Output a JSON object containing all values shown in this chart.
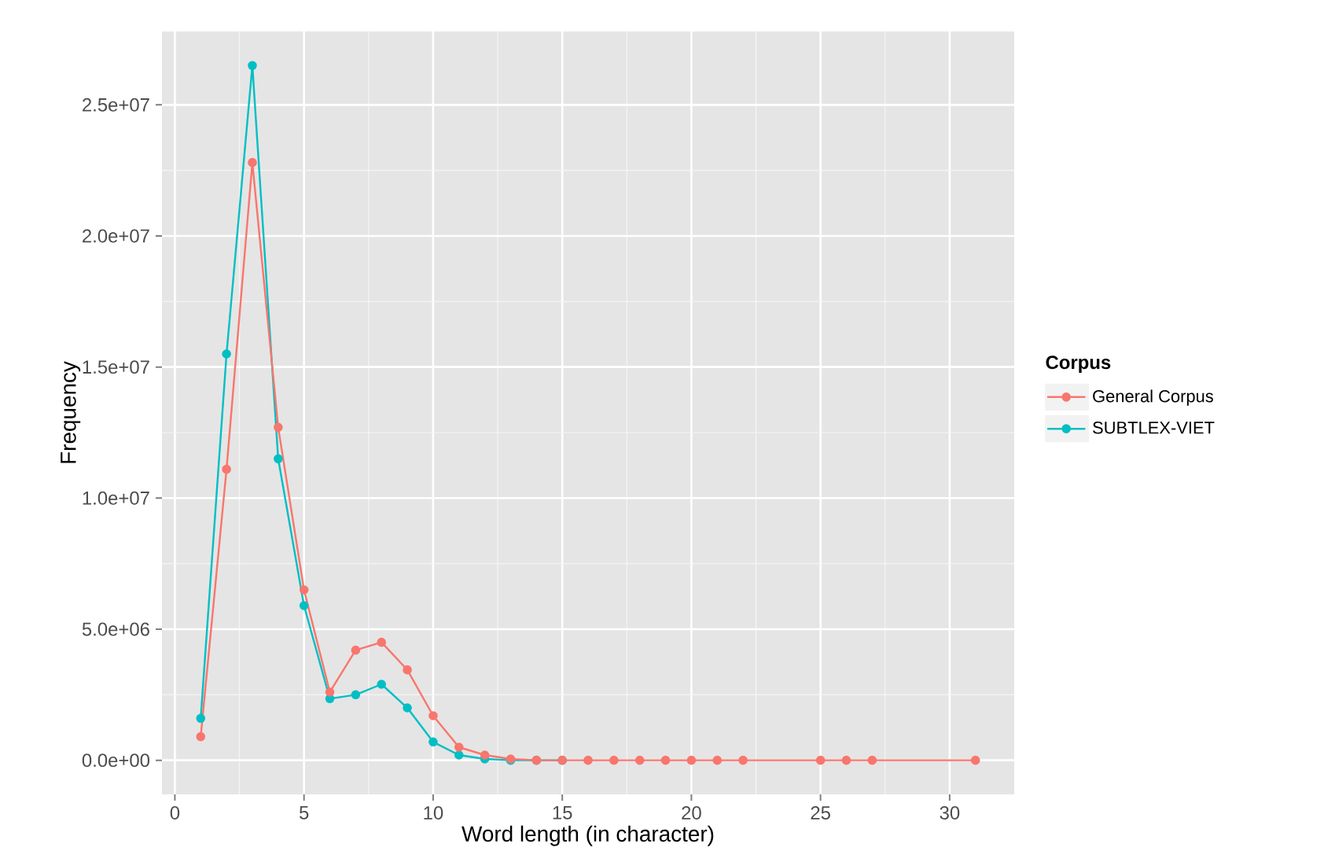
{
  "chart_data": {
    "type": "line",
    "xlabel": "Word length (in character)",
    "ylabel": "Frequency",
    "legend_title": "Corpus",
    "x": [
      1,
      2,
      3,
      4,
      5,
      6,
      7,
      8,
      9,
      10,
      11,
      12,
      13,
      14,
      15,
      16,
      17,
      18,
      19,
      20,
      21,
      22,
      25,
      26,
      27,
      31
    ],
    "series": [
      {
        "name": "General Corpus",
        "color": "#f8766d",
        "values": [
          900000,
          11100000,
          22800000,
          12700000,
          6500000,
          2600000,
          4200000,
          4500000,
          3450000,
          1700000,
          500000,
          200000,
          50000,
          0,
          0,
          0,
          0,
          0,
          0,
          0,
          0,
          0,
          0,
          0,
          0,
          0
        ]
      },
      {
        "name": "SUBTLEX-VIET",
        "color": "#00bfc4",
        "values": [
          1600000,
          15500000,
          26500000,
          11500000,
          5900000,
          2350000,
          2500000,
          2900000,
          2000000,
          700000,
          200000,
          50000,
          0,
          0,
          0,
          null,
          null,
          null,
          null,
          null,
          null,
          null,
          null,
          null,
          null,
          null
        ]
      }
    ],
    "xlim": [
      -0.5,
      32.5
    ],
    "ylim": [
      -1300000,
      27800000
    ],
    "xticks": [
      0,
      5,
      10,
      15,
      20,
      25,
      30
    ],
    "yticks": [
      {
        "value": 0,
        "label": "0.0e+00"
      },
      {
        "value": 5000000,
        "label": "5.0e+06"
      },
      {
        "value": 10000000,
        "label": "1.0e+07"
      },
      {
        "value": 15000000,
        "label": "1.5e+07"
      },
      {
        "value": 20000000,
        "label": "2.0e+07"
      },
      {
        "value": 25000000,
        "label": "2.5e+07"
      }
    ],
    "grid": true,
    "legend": "right",
    "marker": "circle",
    "line_style": "solid"
  }
}
